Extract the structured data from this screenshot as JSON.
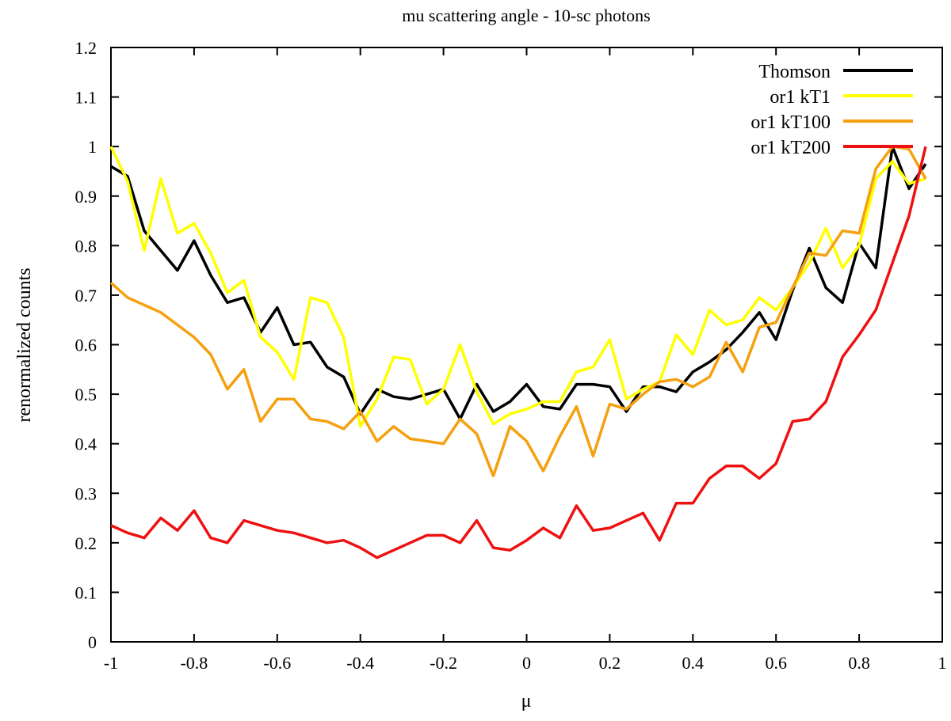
{
  "chart_data": {
    "type": "line",
    "title": "mu scattering angle - 10-sc photons",
    "xlabel": "μ",
    "ylabel": "renormalized counts",
    "xlim": [
      -1,
      1
    ],
    "ylim": [
      0,
      1.2
    ],
    "x_ticks": [
      "-1",
      "-0.8",
      "-0.6",
      "-0.4",
      "-0.2",
      "0",
      "0.2",
      "0.4",
      "0.6",
      "0.8",
      "1"
    ],
    "y_ticks": [
      "0",
      "0.1",
      "0.2",
      "0.3",
      "0.4",
      "0.5",
      "0.6",
      "0.7",
      "0.8",
      "0.9",
      "1",
      "1.1",
      "1.2"
    ],
    "grid": false,
    "legend_position": "top-right",
    "x": [
      -1.0,
      -0.96,
      -0.92,
      -0.88,
      -0.84,
      -0.8,
      -0.76,
      -0.72,
      -0.68,
      -0.64,
      -0.6,
      -0.56,
      -0.52,
      -0.48,
      -0.44,
      -0.4,
      -0.36,
      -0.32,
      -0.28,
      -0.24,
      -0.2,
      -0.16,
      -0.12,
      -0.08,
      -0.04,
      0.0,
      0.04,
      0.08,
      0.12,
      0.16,
      0.2,
      0.24,
      0.28,
      0.32,
      0.36,
      0.4,
      0.44,
      0.48,
      0.52,
      0.56,
      0.6,
      0.64,
      0.68,
      0.72,
      0.76,
      0.8,
      0.84,
      0.88,
      0.92,
      0.96
    ],
    "series": [
      {
        "name": "Thomson",
        "color": "#000000",
        "values": [
          0.96,
          0.94,
          0.83,
          0.79,
          0.75,
          0.81,
          0.74,
          0.685,
          0.695,
          0.625,
          0.675,
          0.6,
          0.605,
          0.555,
          0.535,
          0.46,
          0.51,
          0.495,
          0.49,
          0.5,
          0.51,
          0.45,
          0.52,
          0.465,
          0.485,
          0.52,
          0.475,
          0.47,
          0.52,
          0.52,
          0.515,
          0.465,
          0.515,
          0.515,
          0.505,
          0.545,
          0.565,
          0.59,
          0.625,
          0.665,
          0.61,
          0.71,
          0.795,
          0.715,
          0.685,
          0.805,
          0.755,
          1.0,
          0.915,
          0.965
        ]
      },
      {
        "name": "or1 kT1",
        "color": "#ffff00",
        "values": [
          1.0,
          0.93,
          0.79,
          0.935,
          0.825,
          0.845,
          0.785,
          0.705,
          0.73,
          0.615,
          0.585,
          0.53,
          0.695,
          0.685,
          0.615,
          0.435,
          0.49,
          0.575,
          0.57,
          0.48,
          0.51,
          0.6,
          0.505,
          0.44,
          0.46,
          0.47,
          0.485,
          0.485,
          0.545,
          0.555,
          0.61,
          0.49,
          0.51,
          0.525,
          0.62,
          0.58,
          0.67,
          0.64,
          0.65,
          0.695,
          0.67,
          0.715,
          0.765,
          0.835,
          0.755,
          0.8,
          0.935,
          0.97,
          0.925,
          0.935
        ]
      },
      {
        "name": "or1 kT100",
        "color": "#f5a00f",
        "values": [
          0.725,
          0.695,
          0.68,
          0.665,
          0.64,
          0.615,
          0.58,
          0.51,
          0.55,
          0.445,
          0.49,
          0.49,
          0.45,
          0.445,
          0.43,
          0.465,
          0.405,
          0.435,
          0.41,
          0.405,
          0.4,
          0.45,
          0.42,
          0.335,
          0.435,
          0.405,
          0.345,
          0.415,
          0.475,
          0.375,
          0.48,
          0.47,
          0.5,
          0.525,
          0.53,
          0.515,
          0.535,
          0.605,
          0.545,
          0.635,
          0.645,
          0.715,
          0.785,
          0.78,
          0.83,
          0.825,
          0.955,
          1.0,
          0.995,
          0.935
        ]
      },
      {
        "name": "or1 kT200",
        "color": "#ee1111",
        "values": [
          0.235,
          0.22,
          0.21,
          0.25,
          0.225,
          0.265,
          0.21,
          0.2,
          0.245,
          0.235,
          0.225,
          0.22,
          0.21,
          0.2,
          0.205,
          0.19,
          0.17,
          0.185,
          0.2,
          0.215,
          0.215,
          0.2,
          0.245,
          0.19,
          0.185,
          0.205,
          0.23,
          0.21,
          0.275,
          0.225,
          0.23,
          0.245,
          0.26,
          0.205,
          0.28,
          0.28,
          0.33,
          0.355,
          0.355,
          0.33,
          0.36,
          0.445,
          0.45,
          0.485,
          0.575,
          0.62,
          0.67,
          0.765,
          0.86,
          1.0
        ]
      }
    ]
  }
}
